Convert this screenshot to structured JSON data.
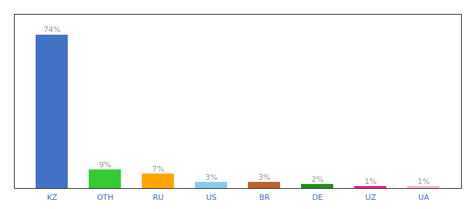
{
  "chart_data": {
    "type": "bar",
    "categories": [
      "KZ",
      "OTH",
      "RU",
      "US",
      "BR",
      "DE",
      "UZ",
      "UA"
    ],
    "values": [
      74,
      9,
      7,
      3,
      3,
      2,
      1,
      1
    ],
    "value_labels": [
      "74%",
      "9%",
      "7%",
      "3%",
      "3%",
      "2%",
      "1%",
      "1%"
    ],
    "colors": [
      "#4472C4",
      "#33CC33",
      "#FFA500",
      "#87CEEB",
      "#C0622A",
      "#228B22",
      "#FF1493",
      "#FFB6C1"
    ],
    "ylim": [
      0,
      84
    ],
    "grid": false,
    "data_labels": true,
    "tick_labels": "x"
  }
}
